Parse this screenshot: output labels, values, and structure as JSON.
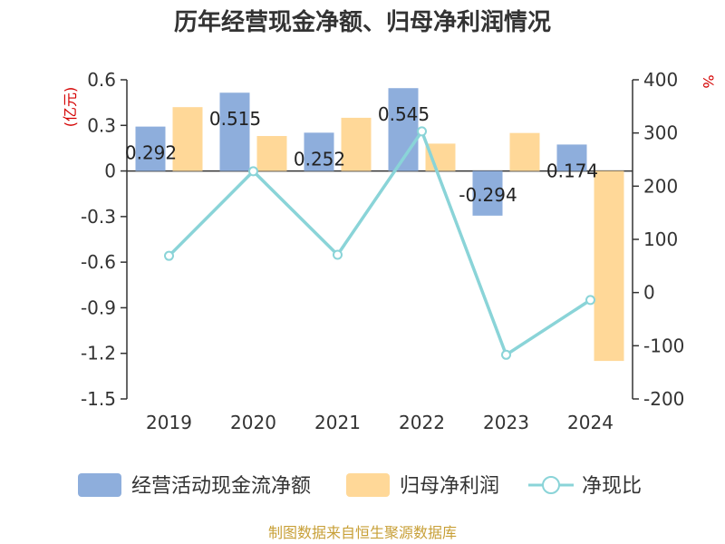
{
  "colors": {
    "cash_flow": "#8EAEDC",
    "net_profit": "#FFD898",
    "ratio": "#8AD4D8",
    "axis": "#333333",
    "unit_red": "#D40000",
    "source": "#C8A038"
  },
  "chart_data": {
    "type": "bar",
    "title": "历年经营现金净额、归母净利润情况",
    "categories": [
      "2019",
      "2020",
      "2021",
      "2022",
      "2023",
      "2024"
    ],
    "series": [
      {
        "name": "经营活动现金流净额",
        "type": "bar",
        "axis": "left",
        "values": [
          0.292,
          0.515,
          0.252,
          0.545,
          -0.294,
          0.174
        ],
        "labels": [
          "0.292",
          "0.515",
          "0.252",
          "0.545",
          "-0.294",
          "0.174"
        ]
      },
      {
        "name": "归母净利润",
        "type": "bar",
        "axis": "left",
        "values": [
          0.42,
          0.23,
          0.35,
          0.18,
          0.25,
          -1.25
        ]
      },
      {
        "name": "净现比",
        "type": "line",
        "axis": "right",
        "values": [
          69,
          228,
          71,
          303,
          -117,
          -14
        ]
      }
    ],
    "y_left": {
      "unit": "(亿元)",
      "min": -1.5,
      "max": 0.6,
      "ticks": [
        "0.6",
        "0.3",
        "0",
        "-0.3",
        "-0.6",
        "-0.9",
        "-1.2",
        "-1.5"
      ],
      "tick_values": [
        0.6,
        0.3,
        0,
        -0.3,
        -0.6,
        -0.9,
        -1.2,
        -1.5
      ]
    },
    "y_right": {
      "unit": "%",
      "min": -200,
      "max": 400,
      "ticks": [
        "400",
        "300",
        "200",
        "100",
        "0",
        "-100",
        "-200"
      ],
      "tick_values": [
        400,
        300,
        200,
        100,
        0,
        -100,
        -200
      ]
    },
    "grid": false,
    "legend_position": "bottom"
  },
  "footer": {
    "source": "制图数据来自恒生聚源数据库"
  }
}
